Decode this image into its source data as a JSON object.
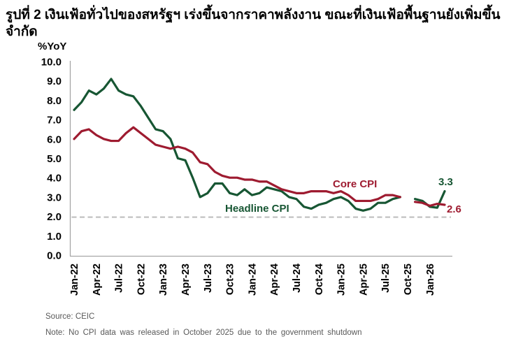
{
  "title": "รูปที่ 2 เงินเฟ้อทั่วไปของสหรัฐฯ เร่งขึ้นจากราคาพลังงาน ขณะที่เงินเฟ้อพื้นฐานยังเพิ่มขึ้นจำกัด",
  "source": "Source: CEIC",
  "note": "Note: No CPI data was released in October 2025 due to the government shutdown",
  "chart_data": {
    "type": "line",
    "ylabel": "%YoY",
    "ylim": [
      0.0,
      10.0
    ],
    "ytick_labels": [
      "10.0",
      "9.0",
      "8.0",
      "7.0",
      "6.0",
      "5.0",
      "4.0",
      "3.0",
      "2.0",
      "1.0",
      "0.0"
    ],
    "x_tick_labels": [
      "Jan-22",
      "Apr-22",
      "Jul-22",
      "Oct-22",
      "Jan-23",
      "Apr-23",
      "Jul-23",
      "Oct-23",
      "Jan-24",
      "Apr-24",
      "Jul-24",
      "Oct-24",
      "Jan-25",
      "Apr-25",
      "Jul-25",
      "Oct-25",
      "Jan-26"
    ],
    "months_per_tick": 3,
    "n_months": 51,
    "grid": false,
    "axis_color": "#A6A6A6",
    "reference_line": {
      "value": 2.0,
      "style": "dashed",
      "color": "#C2C2C2"
    },
    "series": [
      {
        "name": "Headline CPI",
        "color": "#175633",
        "values": [
          7.5,
          7.9,
          8.5,
          8.3,
          8.6,
          9.1,
          8.5,
          8.3,
          8.2,
          7.7,
          7.1,
          6.5,
          6.4,
          6.0,
          5.0,
          4.9,
          4.0,
          3.0,
          3.2,
          3.7,
          3.7,
          3.2,
          3.1,
          3.4,
          3.1,
          3.2,
          3.5,
          3.4,
          3.3,
          3.0,
          2.9,
          2.5,
          2.4,
          2.6,
          2.7,
          2.9,
          3.0,
          2.8,
          2.4,
          2.3,
          2.4,
          2.7,
          2.7,
          2.9,
          3.0,
          null,
          2.9,
          2.8,
          2.5,
          2.45,
          3.3
        ]
      },
      {
        "name": "Core CPI",
        "color": "#9E1B30",
        "values": [
          6.0,
          6.4,
          6.5,
          6.2,
          6.0,
          5.9,
          5.9,
          6.3,
          6.6,
          6.3,
          6.0,
          5.7,
          5.6,
          5.5,
          5.6,
          5.5,
          5.3,
          4.8,
          4.7,
          4.3,
          4.1,
          4.0,
          4.0,
          3.9,
          3.9,
          3.8,
          3.8,
          3.6,
          3.4,
          3.3,
          3.2,
          3.2,
          3.3,
          3.3,
          3.3,
          3.2,
          3.3,
          3.1,
          2.8,
          2.8,
          2.8,
          2.9,
          3.1,
          3.1,
          3.0,
          null,
          2.75,
          2.7,
          2.55,
          2.65,
          2.6
        ]
      }
    ],
    "series_labels": {
      "headline": "Headline CPI",
      "core": "Core CPI"
    },
    "end_labels": {
      "headline": "3.3",
      "core": "2.6"
    },
    "legend_position": "inline-annotations"
  }
}
